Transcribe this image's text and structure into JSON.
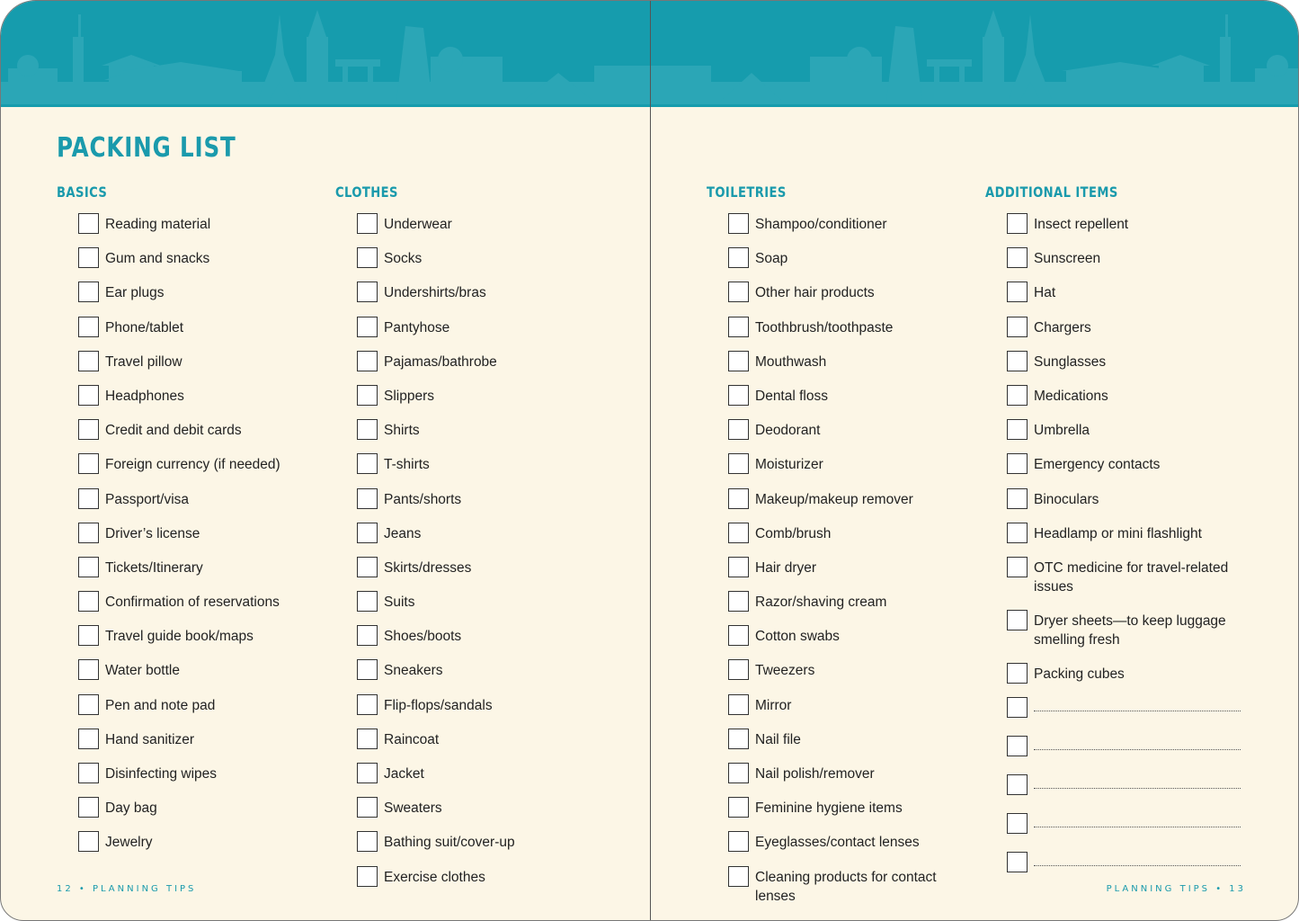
{
  "title": "PACKING LIST",
  "colors": {
    "accent": "#1a9aac",
    "band": "#169cad",
    "paper": "#fcf6e6"
  },
  "sections": [
    {
      "heading": "BASICS",
      "items": [
        "Reading material",
        "Gum and snacks",
        "Ear plugs",
        "Phone/tablet",
        "Travel pillow",
        "Headphones",
        "Credit and debit cards",
        "Foreign currency (if needed)",
        "Passport/visa",
        "Driver’s license",
        "Tickets/Itinerary",
        "Confirmation of reservations",
        "Travel guide book/maps",
        "Water bottle",
        "Pen and note pad",
        "Hand sanitizer",
        "Disinfecting wipes",
        "Day bag",
        "Jewelry"
      ]
    },
    {
      "heading": "CLOTHES",
      "items": [
        "Underwear",
        "Socks",
        "Undershirts/bras",
        "Pantyhose",
        "Pajamas/bathrobe",
        "Slippers",
        "Shirts",
        "T-shirts",
        "Pants/shorts",
        "Jeans",
        "Skirts/dresses",
        "Suits",
        "Shoes/boots",
        "Sneakers",
        "Flip-flops/sandals",
        "Raincoat",
        "Jacket",
        "Sweaters",
        "Bathing suit/cover-up",
        "Exercise clothes"
      ]
    },
    {
      "heading": "TOILETRIES",
      "items": [
        "Shampoo/conditioner",
        "Soap",
        "Other hair products",
        "Toothbrush/toothpaste",
        "Mouthwash",
        "Dental floss",
        "Deodorant",
        "Moisturizer",
        "Makeup/makeup remover",
        "Comb/brush",
        "Hair dryer",
        "Razor/shaving cream",
        "Cotton swabs",
        "Tweezers",
        "Mirror",
        "Nail file",
        "Nail polish/remover",
        "Feminine hygiene items",
        "Eyeglasses/contact lenses",
        "Cleaning products for contact lenses"
      ]
    },
    {
      "heading": "ADDITIONAL ITEMS",
      "items": [
        "Insect repellent",
        "Sunscreen",
        "Hat",
        "Chargers",
        "Sunglasses",
        "Medications",
        "Umbrella",
        "Emergency contacts",
        "Binoculars",
        "Headlamp or mini flashlight",
        "OTC medicine for travel-related issues",
        "Dryer sheets—to keep luggage smelling fresh",
        "Packing cubes"
      ],
      "blank_lines": 5
    }
  ],
  "footer": {
    "left": "12 • PLANNING TIPS",
    "right": "PLANNING TIPS • 13"
  }
}
